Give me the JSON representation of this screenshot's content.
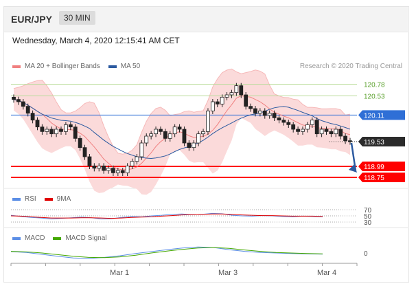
{
  "header": {
    "pair": "EUR/JPY",
    "timeframe": "30 MIN"
  },
  "timestamp": "Wednesday, March 4, 2020 12:15:41 AM CET",
  "credit": "Research © 2020 Trading Central",
  "legends": {
    "main": [
      {
        "label": "MA 20 + Bollinger Bands",
        "color": "#f08080"
      },
      {
        "label": "MA 50",
        "color": "#2c5aa0"
      }
    ],
    "rsi": [
      {
        "label": "RSI",
        "color": "#5b8ee6"
      },
      {
        "label": "9MA",
        "color": "#e00000"
      }
    ],
    "macd": [
      {
        "label": "MACD",
        "color": "#5b8ee6"
      },
      {
        "label": "MACD Signal",
        "color": "#44a800"
      }
    ]
  },
  "chart_data": [
    {
      "type": "candlestick",
      "ylim": [
        118.6,
        121.0
      ],
      "levels": [
        {
          "value": 120.78,
          "label": "120.78",
          "kind": "resistance"
        },
        {
          "value": 120.53,
          "label": "120.53",
          "kind": "resistance"
        },
        {
          "value": 120.11,
          "label": "120.11",
          "kind": "pivot"
        },
        {
          "value": 119.53,
          "label": "119.53",
          "kind": "last"
        },
        {
          "value": 118.99,
          "label": "118.99",
          "kind": "support"
        },
        {
          "value": 118.75,
          "label": "118.75",
          "kind": "support"
        }
      ],
      "close_path": [
        120.45,
        120.4,
        120.3,
        120.15,
        120.0,
        119.85,
        119.75,
        119.8,
        119.7,
        119.8,
        119.75,
        119.9,
        119.85,
        119.6,
        119.4,
        119.2,
        119.0,
        118.95,
        119.0,
        118.9,
        118.95,
        118.85,
        118.9,
        118.85,
        119.0,
        119.1,
        119.2,
        119.5,
        119.65,
        119.7,
        119.8,
        119.75,
        119.6,
        119.7,
        119.85,
        119.8,
        119.5,
        119.4,
        119.5,
        119.7,
        119.75,
        120.2,
        120.4,
        120.35,
        120.5,
        120.55,
        120.6,
        120.75,
        120.55,
        120.3,
        120.25,
        120.15,
        120.2,
        120.1,
        120.15,
        120.05,
        120.0,
        119.95,
        119.9,
        119.8,
        119.75,
        119.8,
        119.9,
        120.0,
        119.7,
        119.8,
        119.75,
        119.7,
        119.8,
        119.65,
        119.55,
        119.53
      ],
      "xlabels": [
        "Mar 1",
        "Mar 3",
        "Mar 4"
      ],
      "trend_arrow": {
        "from": 119.53,
        "to": 118.87
      }
    },
    {
      "type": "line",
      "name": "RSI",
      "yticks": [
        "70",
        "50",
        "30"
      ],
      "series": [
        {
          "name": "RSI",
          "values": [
            52,
            48,
            45,
            43,
            40,
            42,
            44,
            46,
            44,
            40,
            41,
            45,
            48,
            47,
            50,
            52,
            55,
            56,
            54,
            55,
            58,
            57,
            52,
            50,
            49,
            51,
            50,
            48,
            47,
            49,
            48,
            47
          ]
        },
        {
          "name": "9MA",
          "values": [
            50,
            49,
            47,
            45,
            43,
            43,
            43,
            44,
            44,
            43,
            42,
            43,
            45,
            46,
            47,
            49,
            51,
            53,
            54,
            55,
            56,
            56,
            55,
            53,
            52,
            51,
            51,
            50,
            49,
            49,
            49,
            48
          ]
        }
      ]
    },
    {
      "type": "line",
      "name": "MACD",
      "yticks": [
        "0"
      ],
      "series": [
        {
          "name": "MACD",
          "values": [
            0.05,
            0.02,
            -0.05,
            -0.12,
            -0.18,
            -0.2,
            -0.16,
            -0.1,
            -0.02,
            0.05,
            0.12,
            0.18,
            0.22,
            0.2,
            0.12,
            0.06,
            0.02,
            0.0,
            -0.02,
            -0.03,
            -0.04
          ]
        },
        {
          "name": "MACD Signal",
          "values": [
            0.06,
            0.04,
            0.0,
            -0.06,
            -0.12,
            -0.16,
            -0.17,
            -0.14,
            -0.08,
            0.0,
            0.07,
            0.13,
            0.18,
            0.2,
            0.17,
            0.11,
            0.06,
            0.02,
            0.0,
            -0.02,
            -0.03
          ]
        }
      ]
    }
  ]
}
